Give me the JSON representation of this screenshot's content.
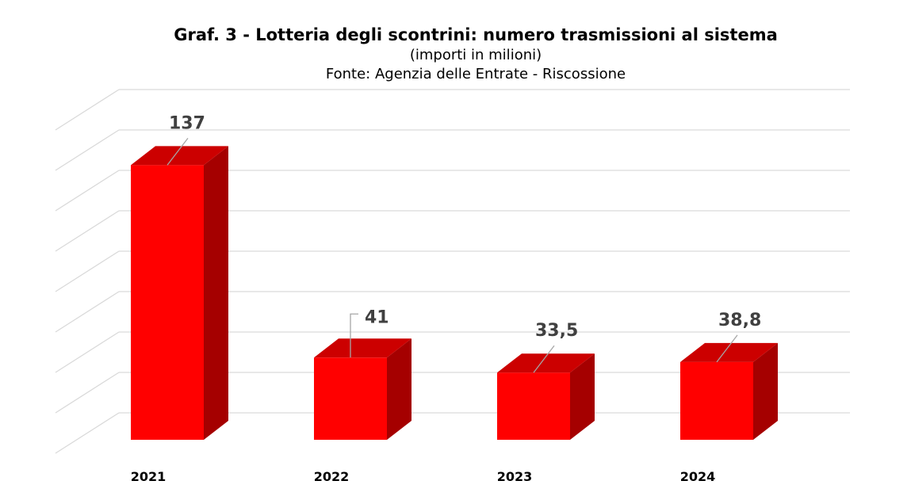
{
  "chart_data": {
    "type": "bar",
    "title": "Graf. 3 - Lotteria degli scontrini: numero trasmissioni al sistema",
    "subtitle": "(importi in milioni)",
    "source": "Fonte: Agenzia delle Entrate - Riscossione",
    "categories": [
      "2021",
      "2022",
      "2023",
      "2024"
    ],
    "values": [
      137,
      41,
      33.5,
      38.8
    ],
    "data_labels": [
      "137",
      "41",
      "33,5",
      "38,8"
    ],
    "ylim": [
      0,
      160
    ],
    "grid": true,
    "legend": "none",
    "colors": {
      "bar_front": "#ff0000",
      "bar_side": "#a50000",
      "bar_top": "#cc0000",
      "grid": "#d9d9d9"
    }
  }
}
